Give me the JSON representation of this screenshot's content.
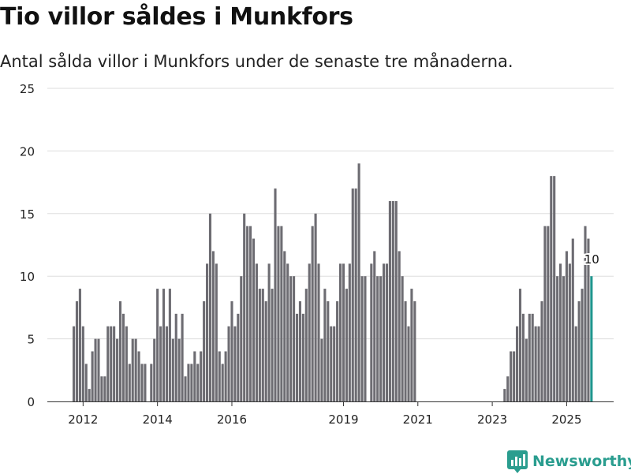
{
  "chart_data": {
    "type": "bar",
    "title": "Tio villor såldes i Munkfors",
    "subtitle": "Antal sålda villor i Munkfors under de senaste tre månaderna.",
    "xlabel": "",
    "ylabel": "",
    "ylim": [
      0,
      25
    ],
    "yticks": [
      0,
      5,
      10,
      15,
      20,
      25
    ],
    "xticks": [
      "2012",
      "2014",
      "2016",
      "2019",
      "2021",
      "2023",
      "2025"
    ],
    "grid": true,
    "bar_color": "#6d6c72",
    "highlight_color": "#20968e",
    "highlight_label": "10",
    "series": [
      {
        "name": "2011",
        "values": [
          6,
          8,
          9
        ]
      },
      {
        "name": "2012",
        "values": [
          6,
          3,
          1,
          4,
          5,
          5,
          2,
          2,
          6,
          6,
          6,
          5
        ]
      },
      {
        "name": "2013",
        "values": [
          8,
          7,
          6,
          3,
          5,
          5,
          4,
          3,
          3,
          0,
          3,
          5
        ]
      },
      {
        "name": "2014",
        "values": [
          9,
          6,
          9,
          6,
          9,
          5,
          7,
          5,
          7,
          2,
          3,
          3
        ]
      },
      {
        "name": "2015",
        "values": [
          4,
          3,
          4,
          8,
          11,
          15,
          12,
          11,
          4,
          3,
          4,
          6
        ]
      },
      {
        "name": "2016",
        "values": [
          8,
          6,
          7,
          10,
          15,
          14,
          14,
          13,
          11,
          9,
          9,
          8
        ]
      },
      {
        "name": "2017",
        "values": [
          11,
          9,
          17,
          14,
          14,
          12,
          11,
          10,
          10,
          7,
          8,
          7
        ]
      },
      {
        "name": "2018",
        "values": [
          9,
          11,
          14,
          15,
          11,
          5,
          9,
          8,
          6,
          6,
          8,
          11
        ]
      },
      {
        "name": "2019",
        "values": [
          11,
          9,
          11,
          17,
          17,
          19,
          10,
          10,
          0,
          11,
          12,
          10
        ]
      },
      {
        "name": "2020",
        "values": [
          10,
          11,
          11,
          16,
          16,
          16,
          12,
          10,
          8,
          6,
          9,
          8
        ]
      },
      {
        "name": "2021",
        "values": [
          0,
          0,
          0,
          0,
          0,
          0,
          0,
          0,
          0,
          0,
          0,
          0
        ]
      },
      {
        "name": "2022",
        "values": [
          0,
          0,
          0,
          0,
          0,
          0,
          0,
          0,
          0,
          0,
          0,
          0
        ]
      },
      {
        "name": "2023",
        "values": [
          0,
          0,
          0,
          0,
          1,
          2,
          4,
          4,
          6,
          9,
          7,
          5
        ]
      },
      {
        "name": "2024",
        "values": [
          7,
          7,
          6,
          6,
          8,
          14,
          14,
          18,
          18,
          10,
          11,
          10
        ]
      },
      {
        "name": "2025",
        "values": [
          12,
          11,
          13,
          6,
          8,
          9,
          14,
          13,
          10
        ]
      }
    ]
  },
  "brand": {
    "name": "Newsworthy",
    "logo_icon": "newsworthy-chart-icon",
    "color": "#2a9d8f"
  }
}
